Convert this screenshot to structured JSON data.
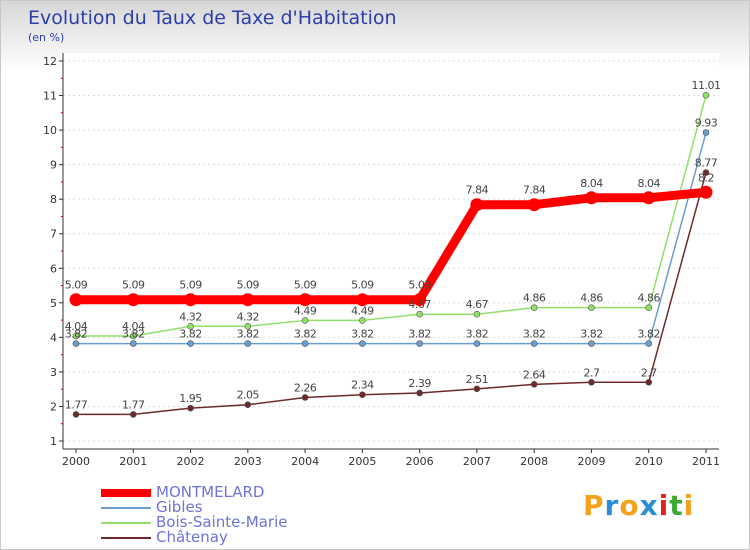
{
  "chart_title": "Evolution du Taux de Taxe d'Habitation",
  "chart_unit": "(en %)",
  "brand": {
    "letters": [
      "P",
      "r",
      "o",
      "x",
      "i",
      "t",
      "i"
    ],
    "colors": [
      "#f4a21b",
      "#2b8fd8",
      "#f4a21b",
      "#2b8fd8",
      "#e2231a",
      "#3aaa35",
      "#f4a21b"
    ]
  },
  "chart_data": {
    "type": "line",
    "title": "Evolution du Taux de Taxe d'Habitation",
    "ylabel": "(en %)",
    "xlabel": "",
    "x": [
      "2000",
      "2001",
      "2002",
      "2003",
      "2004",
      "2005",
      "2006",
      "2007",
      "2008",
      "2009",
      "2010",
      "2011"
    ],
    "ylim": [
      1,
      12
    ],
    "yticks": [
      "1",
      "2",
      "3",
      "4",
      "5",
      "6",
      "7",
      "8",
      "9",
      "10",
      "11",
      "12"
    ],
    "legend_position": "bottom-left",
    "series": [
      {
        "name": "MONTMELARD",
        "color": "#ff0000",
        "emphasis": true,
        "values": [
          5.09,
          5.09,
          5.09,
          5.09,
          5.09,
          5.09,
          5.09,
          7.84,
          7.84,
          8.04,
          8.04,
          8.2
        ],
        "labels": [
          "5.09",
          "5.09",
          "5.09",
          "5.09",
          "5.09",
          "5.09",
          "5.09",
          "7.84",
          "7.84",
          "8.04",
          "8.04",
          "8.2"
        ]
      },
      {
        "name": "Gibles",
        "color": "#6a9ed1",
        "emphasis": false,
        "values": [
          3.82,
          3.82,
          3.82,
          3.82,
          3.82,
          3.82,
          3.82,
          3.82,
          3.82,
          3.82,
          3.82,
          9.93
        ],
        "labels": [
          "3.82",
          "3.82",
          "3.82",
          "3.82",
          "3.82",
          "3.82",
          "3.82",
          "3.82",
          "3.82",
          "3.82",
          "3.82",
          "9.93"
        ]
      },
      {
        "name": "Bois-Sainte-Marie",
        "color": "#90e06a",
        "emphasis": false,
        "values": [
          4.04,
          4.04,
          4.32,
          4.32,
          4.49,
          4.49,
          4.67,
          4.67,
          4.86,
          4.86,
          4.86,
          11.01
        ],
        "labels": [
          "4.04",
          "4.04",
          "4.32",
          "4.32",
          "4.49",
          "4.49",
          "4.67",
          "4.67",
          "4.86",
          "4.86",
          "4.86",
          "11.01"
        ]
      },
      {
        "name": "Châtenay",
        "color": "#6e2a2a",
        "emphasis": false,
        "values": [
          1.77,
          1.77,
          1.95,
          2.05,
          2.26,
          2.34,
          2.39,
          2.51,
          2.64,
          2.7,
          2.7,
          8.77
        ],
        "labels": [
          "1.77",
          "1.77",
          "1.95",
          "2.05",
          "2.26",
          "2.34",
          "2.39",
          "2.51",
          "2.64",
          "2.7",
          "2.7",
          "8.77"
        ]
      }
    ]
  }
}
